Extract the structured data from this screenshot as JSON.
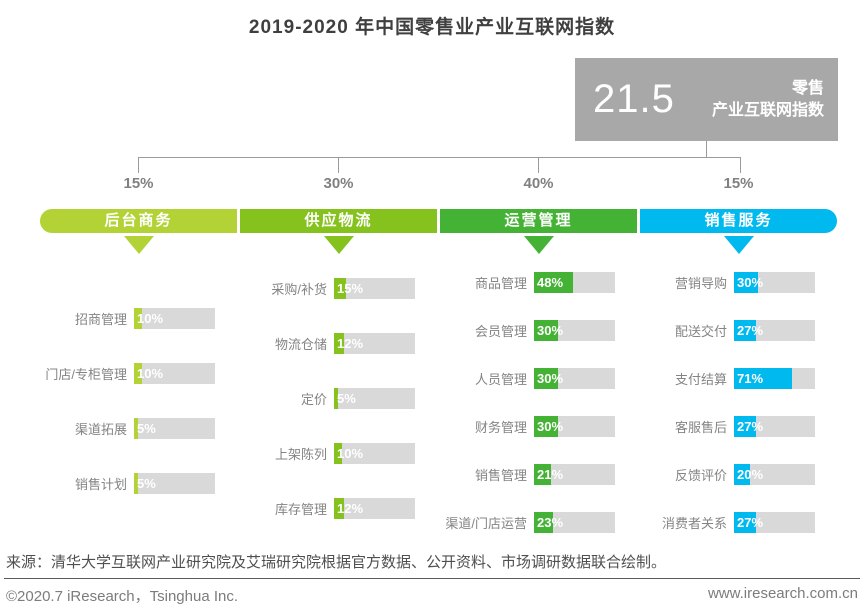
{
  "title": "2019-2020 年中国零售业产业互联网指数",
  "index_box": {
    "value": "21.5",
    "label_line1": "零售",
    "label_line2": "产业互联网指数",
    "bg_color": "#a8a8a8"
  },
  "chart_data": {
    "type": "bar",
    "title": "2019-2020 年中国零售业产业互联网指数",
    "overall_index": 21.5,
    "value_axis_range": [
      0,
      100
    ],
    "bar_background_color": "#d9d9d9",
    "groups": [
      {
        "name": "后台商务",
        "weight": 15,
        "weight_label": "15%",
        "color": "#b2d235",
        "items": [
          {
            "label": "招商管理",
            "value": 10,
            "pct": "10%"
          },
          {
            "label": "门店/专柜管理",
            "value": 10,
            "pct": "10%"
          },
          {
            "label": "渠道拓展",
            "value": 5,
            "pct": "5%"
          },
          {
            "label": "销售计划",
            "value": 5,
            "pct": "5%"
          }
        ]
      },
      {
        "name": "供应物流",
        "weight": 30,
        "weight_label": "30%",
        "color": "#85c21e",
        "items": [
          {
            "label": "采购/补货",
            "value": 15,
            "pct": "15%"
          },
          {
            "label": "物流仓储",
            "value": 12,
            "pct": "12%"
          },
          {
            "label": "定价",
            "value": 5,
            "pct": "5%"
          },
          {
            "label": "上架陈列",
            "value": 10,
            "pct": "10%"
          },
          {
            "label": "库存管理",
            "value": 12,
            "pct": "12%"
          }
        ]
      },
      {
        "name": "运营管理",
        "weight": 40,
        "weight_label": "40%",
        "color": "#44b234",
        "items": [
          {
            "label": "商品管理",
            "value": 48,
            "pct": "48%"
          },
          {
            "label": "会员管理",
            "value": 30,
            "pct": "30%"
          },
          {
            "label": "人员管理",
            "value": 30,
            "pct": "30%"
          },
          {
            "label": "财务管理",
            "value": 30,
            "pct": "30%"
          },
          {
            "label": "销售管理",
            "value": 21,
            "pct": "21%"
          },
          {
            "label": "渠道/门店运营",
            "value": 23,
            "pct": "23%"
          }
        ]
      },
      {
        "name": "销售服务",
        "weight": 15,
        "weight_label": "15%",
        "color": "#00b9ef",
        "items": [
          {
            "label": "营销导购",
            "value": 30,
            "pct": "30%"
          },
          {
            "label": "配送交付",
            "value": 27,
            "pct": "27%"
          },
          {
            "label": "支付结算",
            "value": 71,
            "pct": "71%"
          },
          {
            "label": "客服售后",
            "value": 27,
            "pct": "27%"
          },
          {
            "label": "反馈评价",
            "value": 20,
            "pct": "20%"
          },
          {
            "label": "消费者关系",
            "value": 27,
            "pct": "27%"
          }
        ]
      }
    ]
  },
  "source": "来源：清华大学互联网产业研究院及艾瑞研究院根据官方数据、公开资料、市场调研数据联合绘制。",
  "footer": {
    "left": "©2020.7 iResearch，Tsinghua Inc.",
    "right": "www.iresearch.com.cn"
  }
}
